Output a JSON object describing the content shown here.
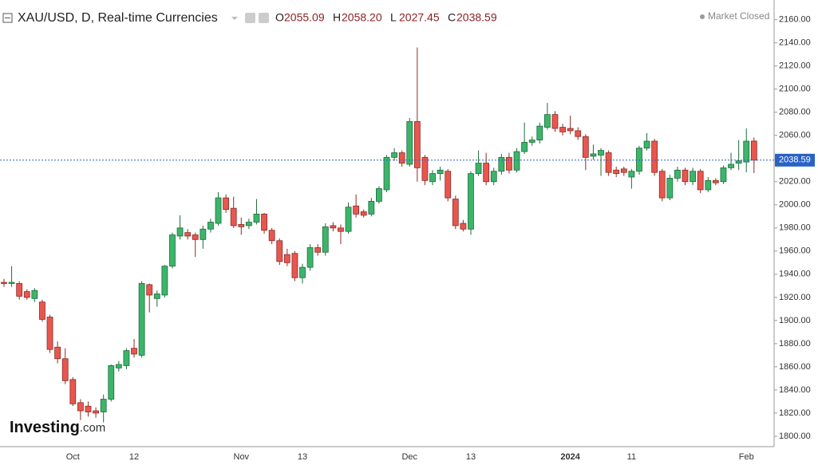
{
  "chart_data": {
    "type": "candlestick",
    "title": "XAU/USD, D, Real-time Currencies",
    "ohlc_header": [
      {
        "key": "O",
        "text": "2055.09"
      },
      {
        "key": "H",
        "text": "2058.20"
      },
      {
        "key": "L",
        "text": "2027.45"
      },
      {
        "key": "C",
        "text": "2038.59"
      }
    ],
    "status": "Market Closed",
    "logo": {
      "name": "Investing",
      "suffix": ".com"
    },
    "categories": [
      null,
      null,
      null,
      null,
      null,
      null,
      null,
      null,
      null,
      "Oct",
      null,
      null,
      null,
      null,
      null,
      null,
      null,
      "12",
      null,
      null,
      null,
      null,
      null,
      null,
      null,
      null,
      null,
      null,
      null,
      null,
      null,
      "Nov",
      null,
      null,
      null,
      null,
      null,
      null,
      null,
      "13",
      null,
      null,
      null,
      null,
      null,
      null,
      null,
      null,
      null,
      null,
      null,
      null,
      null,
      "Dec",
      null,
      null,
      null,
      null,
      null,
      null,
      null,
      "13",
      null,
      null,
      null,
      null,
      null,
      null,
      null,
      null,
      null,
      null,
      null,
      null,
      "2024",
      null,
      null,
      null,
      null,
      null,
      null,
      null,
      "11",
      null,
      null,
      null,
      null,
      null,
      null,
      null,
      null,
      null,
      null,
      null,
      null,
      null,
      null,
      "Feb",
      null
    ],
    "open": [
      1933,
      1932,
      1932,
      1925,
      1919,
      1916,
      1903,
      1877,
      1867,
      1849,
      1829,
      1826,
      1822,
      1821,
      1832,
      1859,
      1861,
      1876,
      1870,
      1931,
      1919,
      1922,
      1947,
      1973,
      1976,
      1974,
      1970,
      1979,
      1984,
      2006,
      1997,
      1983,
      1982,
      1985,
      1992,
      1978,
      1969,
      1957,
      1958,
      1937,
      1946,
      1963,
      1959,
      1982,
      1980,
      1977,
      1999,
      1994,
      1992,
      2003,
      2013,
      2041,
      2045,
      2035,
      2072,
      2041,
      2020,
      2027,
      2029,
      2005,
      1984,
      1979,
      2027,
      2036,
      2020,
      2029,
      2041,
      2030,
      2046,
      2054,
      2056,
      2067,
      2078,
      2067,
      2066,
      2064,
      2059,
      2042,
      2043,
      2045,
      2030,
      2031,
      2024,
      2029,
      2049,
      2055,
      2029,
      2006,
      2023,
      2030,
      2020,
      2029,
      2013,
      2021,
      2020,
      2032,
      2036,
      2037,
      2055.09
    ],
    "high": [
      1936,
      1947,
      1934,
      1927,
      1928,
      1918,
      1905,
      1882,
      1876,
      1851,
      1832,
      1830,
      1825,
      1836,
      1862,
      1865,
      1876,
      1884,
      1934,
      1932,
      1926,
      1948,
      1976,
      1991,
      1979,
      1976,
      1982,
      1988,
      2011,
      2009,
      2007,
      1989,
      1988,
      2005,
      1993,
      1980,
      1971,
      1962,
      1960,
      1949,
      1966,
      1966,
      1984,
      1985,
      1983,
      2002,
      2009,
      1996,
      2006,
      2016,
      2043,
      2049,
      2047,
      2075,
      2136,
      2043,
      2030,
      2033,
      2031,
      2008,
      1987,
      2029,
      2047,
      2045,
      2032,
      2044,
      2045,
      2049,
      2071,
      2059,
      2071,
      2088,
      2081,
      2070,
      2077,
      2067,
      2061,
      2052,
      2049,
      2047,
      2033,
      2033,
      2031,
      2051,
      2062,
      2057,
      2031,
      2026,
      2033,
      2032,
      2032,
      2031,
      2024,
      2023,
      2034,
      2045,
      2056,
      2066,
      2058.2
    ],
    "low": [
      1929,
      1929,
      1918,
      1918,
      1916,
      1899,
      1872,
      1863,
      1845,
      1826,
      1814,
      1817,
      1816,
      1812,
      1830,
      1856,
      1858,
      1868,
      1868,
      1907,
      1912,
      1920,
      1945,
      1970,
      1970,
      1955,
      1962,
      1976,
      1982,
      1993,
      1980,
      1974,
      1979,
      1983,
      1975,
      1966,
      1948,
      1947,
      1934,
      1932,
      1943,
      1956,
      1956,
      1977,
      1966,
      1975,
      1989,
      1989,
      1990,
      2001,
      2011,
      2038,
      2033,
      2033,
      2020,
      2017,
      2017,
      2021,
      2003,
      1979,
      1977,
      1974,
      2025,
      2017,
      2017,
      2026,
      2027,
      2028,
      2044,
      2051,
      2053,
      2065,
      2063,
      2060,
      2061,
      2056,
      2030,
      2039,
      2025,
      2025,
      2024,
      2025,
      2014,
      2026,
      2047,
      2025,
      2003,
      2004,
      2020,
      2017,
      2017,
      2010,
      2011,
      2017,
      2018,
      2030,
      2030,
      2028,
      2027.45
    ],
    "close": [
      1932,
      1933,
      1921,
      1920,
      1926,
      1901,
      1875,
      1867,
      1848,
      1828,
      1822,
      1821,
      1820,
      1832,
      1861,
      1862,
      1874,
      1871,
      1932,
      1922,
      1923,
      1947,
      1974,
      1980,
      1973,
      1970,
      1979,
      1985,
      2006,
      1996,
      1982,
      1981,
      1985,
      1992,
      1978,
      1969,
      1951,
      1950,
      1937,
      1946,
      1963,
      1959,
      1981,
      1980,
      1977,
      1998,
      1992,
      1991,
      2003,
      2014,
      2041,
      2045,
      2036,
      2072,
      2032,
      2021,
      2027,
      2030,
      2006,
      1982,
      1979,
      2027,
      2036,
      2020,
      2029,
      2041,
      2030,
      2046,
      2054,
      2056,
      2068,
      2078,
      2066,
      2063,
      2064,
      2059,
      2041,
      2044,
      2047,
      2028,
      2027,
      2028,
      2029,
      2049,
      2055,
      2028,
      2006,
      2023,
      2030,
      2020,
      2029,
      2013,
      2021,
      2019,
      2032,
      2035,
      2038,
      2055,
      2038.59
    ],
    "up_color": "#3cb56b",
    "down_color": "#e8574f",
    "last_price": 2038.59,
    "last_price_color": "#2962c4",
    "ylim": [
      1791,
      2177
    ],
    "yticks": [
      {
        "value": 1800,
        "label": "1800.00"
      },
      {
        "value": 1820,
        "label": "1820.00"
      },
      {
        "value": 1840,
        "label": "1840.00"
      },
      {
        "value": 1860,
        "label": "1860.00"
      },
      {
        "value": 1880,
        "label": "1880.00"
      },
      {
        "value": 1900,
        "label": "1900.00"
      },
      {
        "value": 1920,
        "label": "1920.00"
      },
      {
        "value": 1940,
        "label": "1940.00"
      },
      {
        "value": 1960,
        "label": "1960.00"
      },
      {
        "value": 1980,
        "label": "1980.00"
      },
      {
        "value": 2000,
        "label": "2000.00"
      },
      {
        "value": 2020,
        "label": "2020.00"
      },
      {
        "value": 2040,
        "label": "2040.00"
      },
      {
        "value": 2060,
        "label": "2060.00"
      },
      {
        "value": 2080,
        "label": "2080.00"
      },
      {
        "value": 2100,
        "label": "2100.00"
      },
      {
        "value": 2120,
        "label": "2120.00"
      },
      {
        "value": 2140,
        "label": "2140.00"
      },
      {
        "value": 2160,
        "label": "2160.00"
      }
    ],
    "grid": false
  }
}
